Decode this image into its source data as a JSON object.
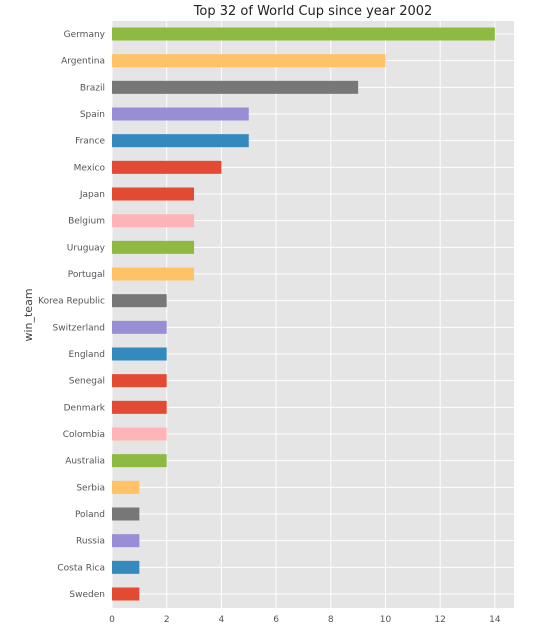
{
  "chart_data": {
    "type": "bar",
    "orientation": "horizontal",
    "title": "Top 32 of World Cup since year 2002",
    "xlabel": "",
    "ylabel": "win_team",
    "xlim": [
      0,
      14.7
    ],
    "xticks": [
      "0",
      "2",
      "4",
      "6",
      "8",
      "10",
      "12",
      "14"
    ],
    "grid": true,
    "categories": [
      "Germany",
      "Argentina",
      "Brazil",
      "Spain",
      "France",
      "Mexico",
      "Japan",
      "Belgium",
      "Uruguay",
      "Portugal",
      "Korea Republic",
      "Switzerland",
      "England",
      "Senegal",
      "Denmark",
      "Colombia",
      "Australia",
      "Serbia",
      "Poland",
      "Russia",
      "Costa Rica",
      "Sweden"
    ],
    "values": [
      14,
      10,
      9,
      5,
      5,
      4,
      3,
      3,
      3,
      3,
      2,
      2,
      2,
      2,
      2,
      2,
      2,
      1,
      1,
      1,
      1,
      1
    ],
    "colors": [
      "#8EBA42",
      "#FFC266",
      "#777777",
      "#988ED5",
      "#348ABD",
      "#E24A33",
      "#E24A33",
      "#FFB5B8",
      "#8EBA42",
      "#FFC266",
      "#777777",
      "#988ED5",
      "#348ABD",
      "#E24A33",
      "#E24A33",
      "#FFB5B8",
      "#8EBA42",
      "#FFC266",
      "#777777",
      "#988ED5",
      "#348ABD",
      "#E24A33"
    ]
  }
}
